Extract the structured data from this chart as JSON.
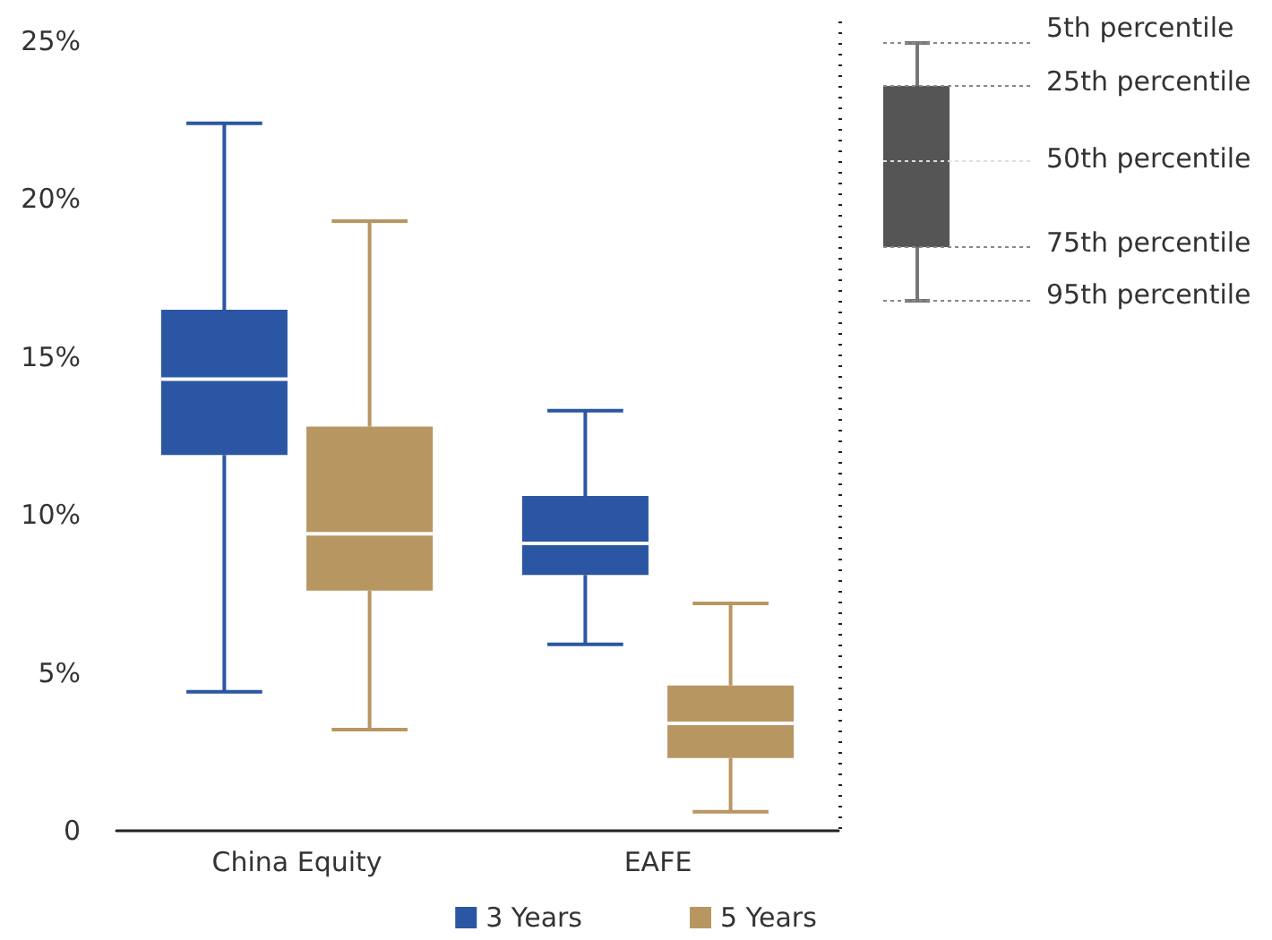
{
  "chart_data": {
    "type": "box",
    "categories": [
      "China Equity",
      "EAFE"
    ],
    "series": [
      {
        "name": "3 Years",
        "color": "#2b56a3",
        "boxes": [
          {
            "low": 4.4,
            "q1": 11.9,
            "median": 14.3,
            "q3": 16.5,
            "high": 22.4
          },
          {
            "low": 5.9,
            "q1": 8.1,
            "median": 9.1,
            "q3": 10.6,
            "high": 13.3
          }
        ]
      },
      {
        "name": "5 Years",
        "color": "#b89662",
        "boxes": [
          {
            "low": 3.2,
            "q1": 7.6,
            "median": 9.4,
            "q3": 12.8,
            "high": 19.3
          },
          {
            "low": 0.6,
            "q1": 2.3,
            "median": 3.4,
            "q3": 4.6,
            "high": 7.2
          }
        ]
      }
    ],
    "ylim": [
      0,
      25
    ],
    "yticks": [
      {
        "value": 0,
        "label": "0"
      },
      {
        "value": 5,
        "label": "5%"
      },
      {
        "value": 10,
        "label": "10%"
      },
      {
        "value": 15,
        "label": "15%"
      },
      {
        "value": 20,
        "label": "20%"
      },
      {
        "value": 25,
        "label": "25%"
      }
    ],
    "grid": false,
    "legend": "bottom",
    "annotations": [
      "5th percentile",
      "25th percentile",
      "50th percentile",
      "75th percentile",
      "95th percentile"
    ]
  }
}
